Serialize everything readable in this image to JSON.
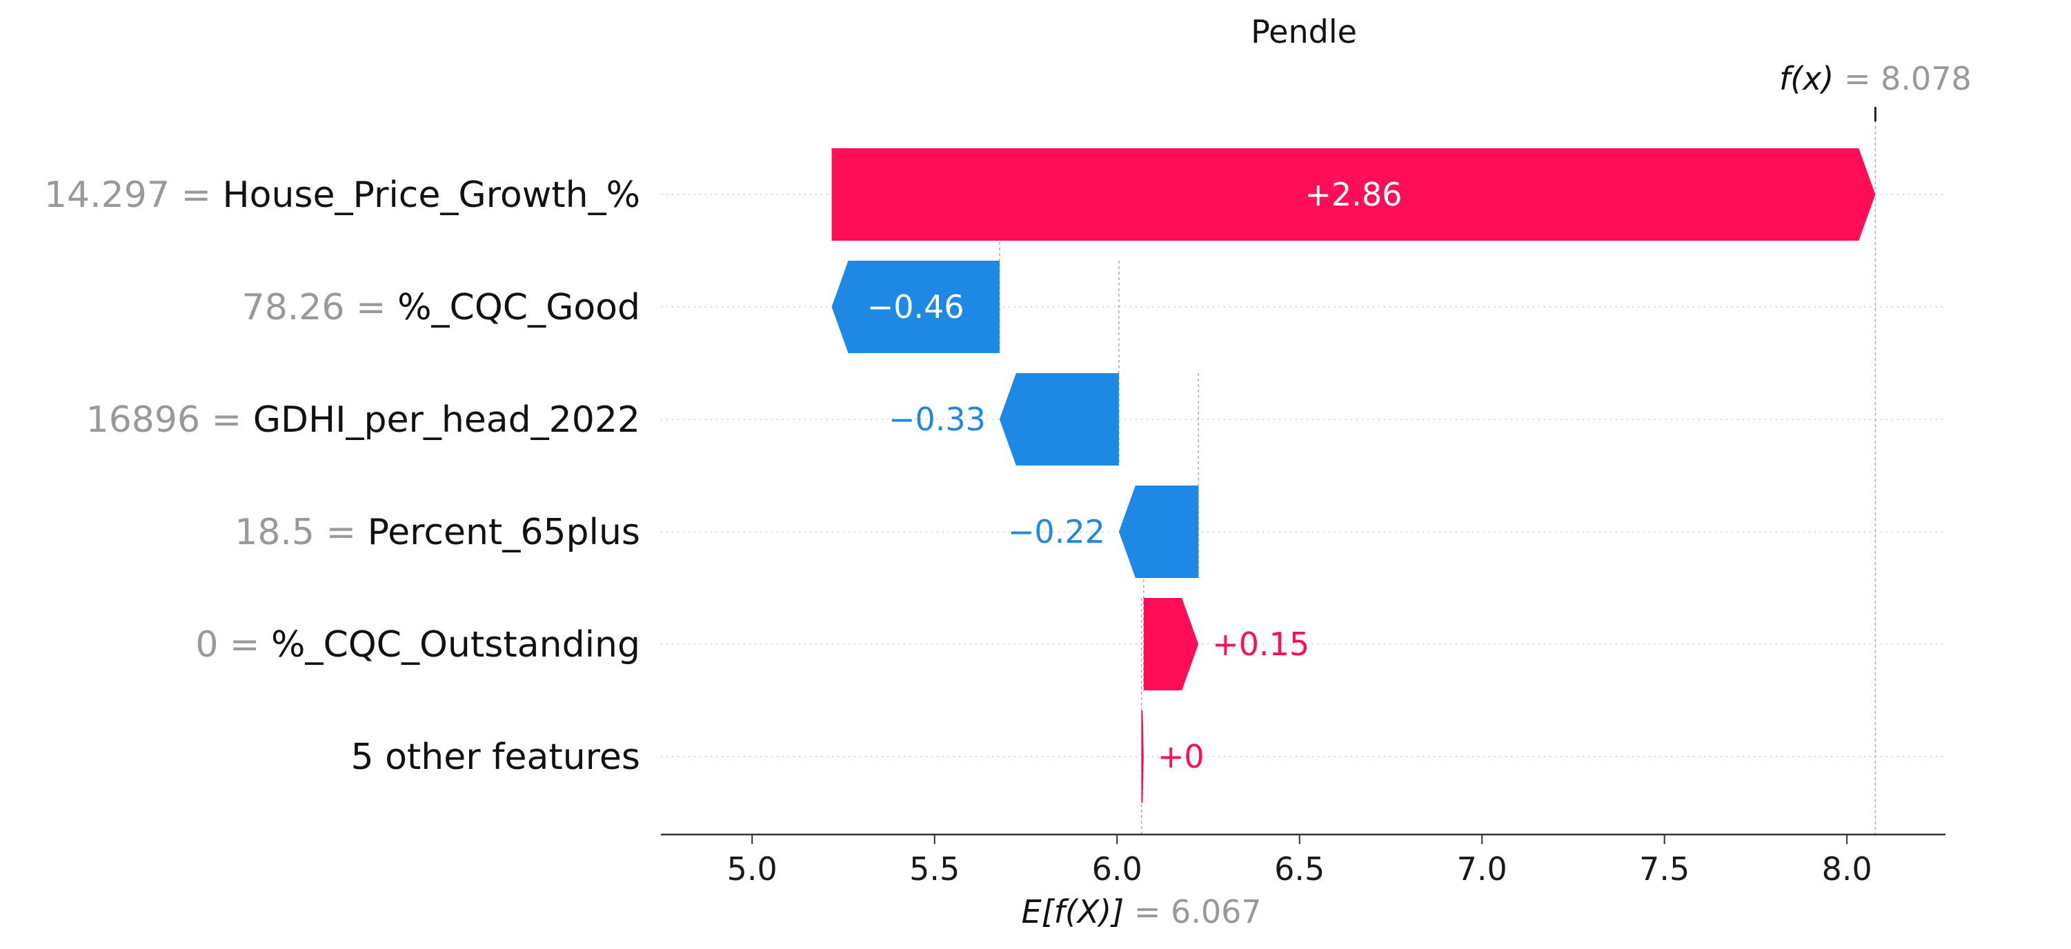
{
  "chart_data": {
    "type": "waterfall",
    "title": "Pendle",
    "base_value": 6.067,
    "base_value_text": "6.067",
    "base_label_prefix": "E[f(X)]",
    "output_value": 8.078,
    "output_value_text": "8.078",
    "output_label_prefix": "f(x)",
    "equals_sign": "=",
    "xlim": [
      4.75,
      8.27
    ],
    "x_ticks": [
      5.0,
      5.5,
      6.0,
      6.5,
      7.0,
      7.5,
      8.0
    ],
    "x_tick_labels": [
      "5.0",
      "5.5",
      "6.0",
      "6.5",
      "7.0",
      "7.5",
      "8.0"
    ],
    "grid": "horizontal dotted",
    "features": [
      {
        "value": "14.297",
        "name": "House_Price_Growth_%",
        "contribution": 2.86,
        "label": "+2.86",
        "start": 5.218,
        "end": 8.078
      },
      {
        "value": "78.26",
        "name": "%_CQC_Good",
        "contribution": -0.46,
        "label": "−0.46",
        "start": 5.678,
        "end": 5.218
      },
      {
        "value": "16896",
        "name": "GDHI_per_head_2022",
        "contribution": -0.33,
        "label": "−0.33",
        "start": 6.005,
        "end": 5.678
      },
      {
        "value": "18.5",
        "name": "Percent_65plus",
        "contribution": -0.22,
        "label": "−0.22",
        "start": 6.223,
        "end": 6.005
      },
      {
        "value": "0",
        "name": "%_CQC_Outstanding",
        "contribution": 0.15,
        "label": "+0.15",
        "start": 6.073,
        "end": 6.223
      },
      {
        "value": "",
        "name": "5 other features",
        "contribution": 0.0,
        "label": "+0",
        "start": 6.067,
        "end": 6.073
      }
    ],
    "colors": {
      "positive": "#ff0d57",
      "negative": "#1e88e5",
      "value_text": "#999999",
      "grid": "#cccccc",
      "axis": "#333333"
    }
  }
}
